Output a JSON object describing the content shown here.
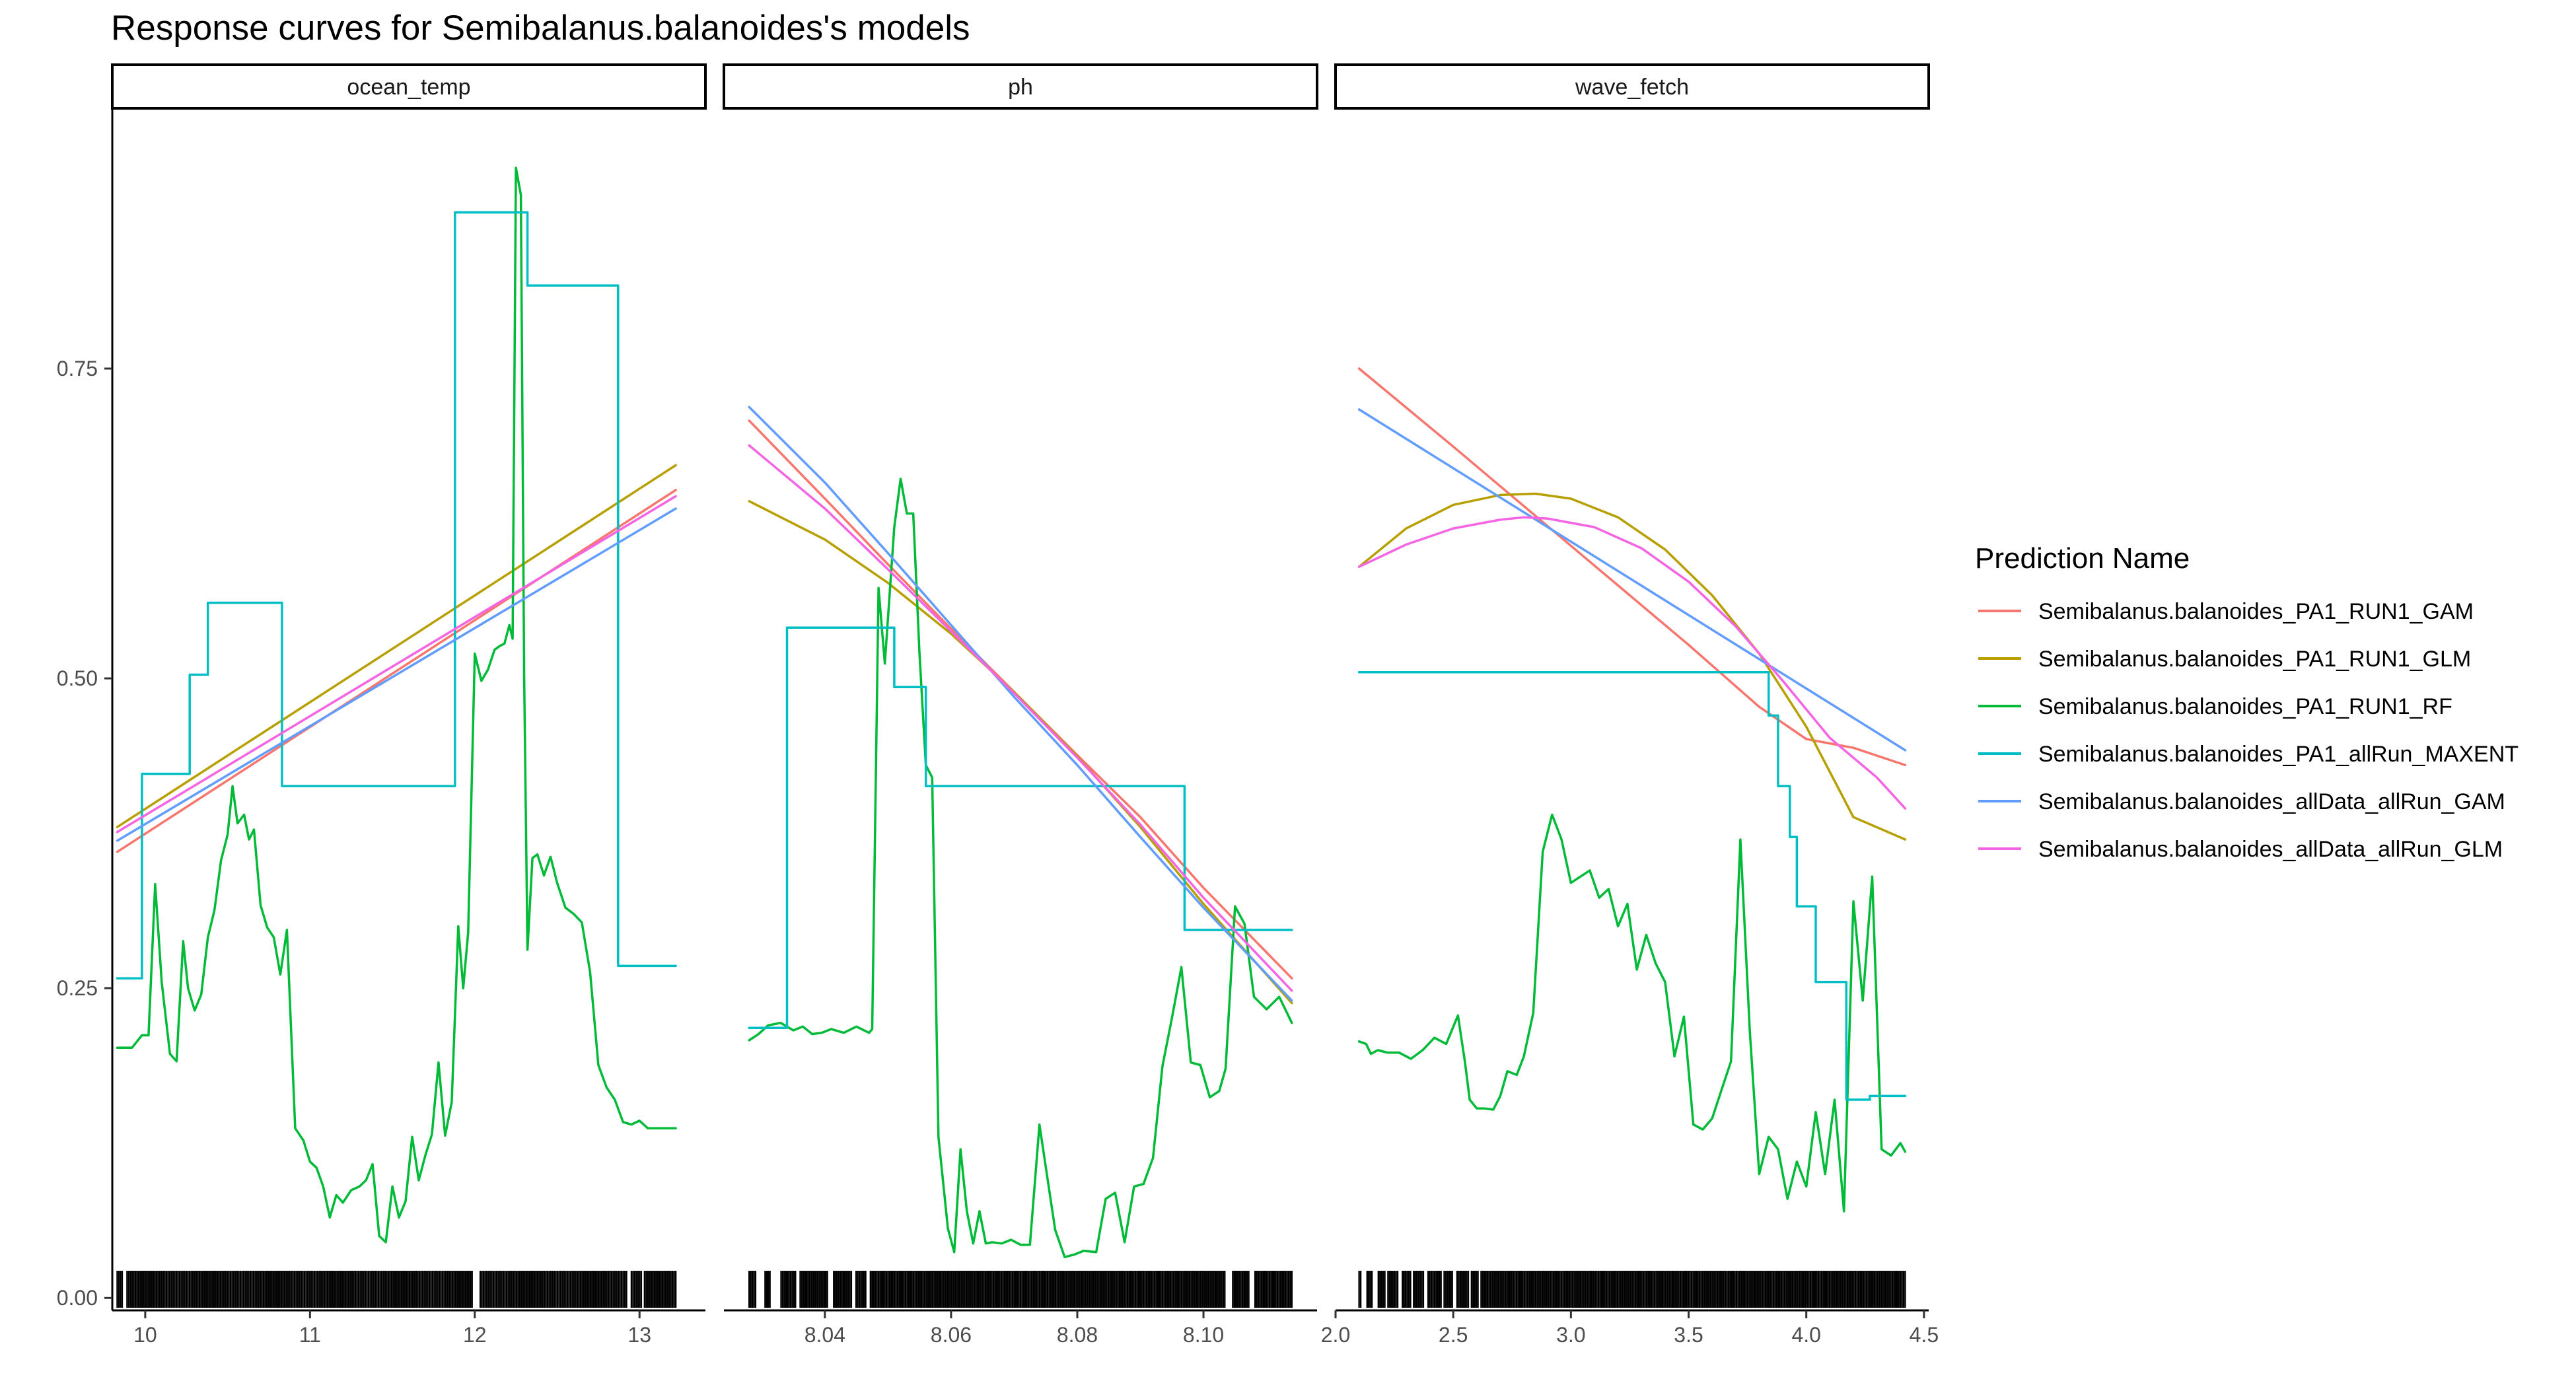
{
  "chart_data": {
    "type": "line",
    "title": "Response curves for Semibalanus.balanoides's models",
    "xlabel": "",
    "ylabel": "",
    "ylim": [
      -0.01,
      0.96
    ],
    "yticks": [
      "0.00",
      "0.25",
      "0.50",
      "0.75"
    ],
    "ytick_values": [
      0,
      0.25,
      0.5,
      0.75
    ],
    "grid": false,
    "legend_position": "right",
    "legend": {
      "title": "Prediction Name",
      "entries": [
        {
          "name": "Semibalanus.balanoides_PA1_RUN1_GAM",
          "color": "#F8766D"
        },
        {
          "name": "Semibalanus.balanoides_PA1_RUN1_GLM",
          "color": "#B79F00"
        },
        {
          "name": "Semibalanus.balanoides_PA1_RUN1_RF",
          "color": "#00BA38"
        },
        {
          "name": "Semibalanus.balanoides_PA1_allRun_MAXENT",
          "color": "#00BFC4"
        },
        {
          "name": "Semibalanus.balanoides_allData_allRun_GAM",
          "color": "#619CFF"
        },
        {
          "name": "Semibalanus.balanoides_allData_allRun_GLM",
          "color": "#F564E3"
        }
      ]
    },
    "panels": [
      {
        "strip": "ocean_temp",
        "xlim": [
          9.8,
          13.4
        ],
        "xticks": [
          "10",
          "11",
          "12",
          "13"
        ],
        "xtick_values": [
          10,
          11,
          12,
          13
        ],
        "series": [
          {
            "name": "Semibalanus.balanoides_PA1_RUN1_GAM",
            "x": [
              9.83,
              13.22
            ],
            "y": [
              0.36,
              0.652
            ]
          },
          {
            "name": "Semibalanus.balanoides_PA1_RUN1_GLM",
            "x": [
              9.83,
              13.22
            ],
            "y": [
              0.38,
              0.672
            ]
          },
          {
            "name": "Semibalanus.balanoides_PA1_RUN1_RF",
            "x": [
              9.83,
              9.92,
              9.98,
              10.02,
              10.06,
              10.1,
              10.15,
              10.19,
              10.23,
              10.26,
              10.3,
              10.34,
              10.38,
              10.42,
              10.46,
              10.5,
              10.53,
              10.56,
              10.6,
              10.63,
              10.66,
              10.7,
              10.74,
              10.78,
              10.82,
              10.86,
              10.91,
              10.96,
              11.0,
              11.04,
              11.08,
              11.12,
              11.16,
              11.2,
              11.25,
              11.3,
              11.34,
              11.38,
              11.42,
              11.46,
              11.5,
              11.54,
              11.58,
              11.62,
              11.66,
              11.7,
              11.74,
              11.78,
              11.82,
              11.86,
              11.9,
              11.93,
              11.96,
              12.0,
              12.04,
              12.08,
              12.12,
              12.15,
              12.18,
              12.21,
              12.23,
              12.25,
              12.28,
              12.3,
              12.32,
              12.35,
              12.38,
              12.42,
              12.46,
              12.5,
              12.55,
              12.6,
              12.65,
              12.7,
              12.75,
              12.8,
              12.85,
              12.9,
              12.95,
              13.0,
              13.05,
              13.1,
              13.22
            ],
            "y": [
              0.202,
              0.202,
              0.212,
              0.212,
              0.334,
              0.255,
              0.197,
              0.191,
              0.288,
              0.25,
              0.232,
              0.245,
              0.291,
              0.313,
              0.353,
              0.374,
              0.413,
              0.383,
              0.39,
              0.37,
              0.378,
              0.317,
              0.299,
              0.291,
              0.261,
              0.297,
              0.137,
              0.127,
              0.11,
              0.105,
              0.09,
              0.065,
              0.083,
              0.077,
              0.087,
              0.09,
              0.095,
              0.108,
              0.05,
              0.045,
              0.09,
              0.065,
              0.078,
              0.13,
              0.095,
              0.115,
              0.132,
              0.19,
              0.131,
              0.158,
              0.3,
              0.25,
              0.295,
              0.52,
              0.498,
              0.507,
              0.523,
              0.526,
              0.528,
              0.543,
              0.532,
              0.912,
              0.89,
              0.5,
              0.281,
              0.355,
              0.358,
              0.341,
              0.356,
              0.335,
              0.315,
              0.31,
              0.303,
              0.263,
              0.188,
              0.17,
              0.16,
              0.142,
              0.14,
              0.143,
              0.137,
              0.137,
              0.137
            ]
          },
          {
            "name": "Semibalanus.balanoides_PA1_allRun_MAXENT",
            "x": [
              9.83,
              9.98,
              9.98,
              10.27,
              10.27,
              10.38,
              10.38,
              10.83,
              10.83,
              11.88,
              11.88,
              12.32,
              12.32,
              12.87,
              12.87,
              13.22
            ],
            "y": [
              0.258,
              0.258,
              0.423,
              0.423,
              0.503,
              0.503,
              0.561,
              0.561,
              0.413,
              0.413,
              0.876,
              0.876,
              0.817,
              0.817,
              0.268,
              0.268
            ]
          },
          {
            "name": "Semibalanus.balanoides_allData_allRun_GAM",
            "x": [
              9.83,
              13.22
            ],
            "y": [
              0.369,
              0.637
            ]
          },
          {
            "name": "Semibalanus.balanoides_allData_allRun_GLM",
            "x": [
              9.83,
              13.22
            ],
            "y": [
              0.376,
              0.647
            ]
          }
        ],
        "rug_gaps": [
          [
            9.86,
            9.88
          ],
          [
            11.99,
            12.03
          ],
          [
            12.93,
            12.95
          ],
          [
            13.02,
            13.03
          ]
        ]
      },
      {
        "strip": "ph",
        "xlim": [
          8.024,
          8.118
        ],
        "xticks": [
          "8.04",
          "8.06",
          "8.08",
          "8.10"
        ],
        "xtick_values": [
          8.04,
          8.06,
          8.08,
          8.1
        ],
        "series": [
          {
            "name": "Semibalanus.balanoides_PA1_RUN1_GAM",
            "x": [
              8.028,
              8.04,
              8.05,
              8.06,
              8.07,
              8.08,
              8.09,
              8.1,
              8.114
            ],
            "y": [
              0.708,
              0.645,
              0.592,
              0.54,
              0.489,
              0.438,
              0.388,
              0.331,
              0.258
            ]
          },
          {
            "name": "Semibalanus.balanoides_PA1_RUN1_GLM",
            "x": [
              8.028,
              8.04,
              8.05,
              8.06,
              8.07,
              8.08,
              8.09,
              8.1,
              8.114
            ],
            "y": [
              0.643,
              0.612,
              0.577,
              0.536,
              0.489,
              0.437,
              0.38,
              0.318,
              0.238
            ]
          },
          {
            "name": "Semibalanus.balanoides_PA1_RUN1_RF",
            "x": [
              8.028,
              8.0295,
              8.031,
              8.033,
              8.035,
              8.0365,
              8.038,
              8.0395,
              8.041,
              8.043,
              8.045,
              8.047,
              8.0475,
              8.0485,
              8.0495,
              8.051,
              8.052,
              8.053,
              8.054,
              8.055,
              8.056,
              8.057,
              8.058,
              8.0595,
              8.0605,
              8.0615,
              8.0625,
              8.0635,
              8.0645,
              8.0655,
              8.0665,
              8.068,
              8.0695,
              8.071,
              8.0725,
              8.074,
              8.075,
              8.0765,
              8.078,
              8.0795,
              8.081,
              8.083,
              8.0845,
              8.086,
              8.0875,
              8.089,
              8.0905,
              8.092,
              8.0935,
              8.095,
              8.0965,
              8.098,
              8.0995,
              8.101,
              8.1025,
              8.1035,
              8.105,
              8.1065,
              8.108,
              8.11,
              8.112,
              8.114
            ],
            "y": [
              0.208,
              0.213,
              0.22,
              0.222,
              0.216,
              0.219,
              0.213,
              0.214,
              0.217,
              0.214,
              0.219,
              0.214,
              0.217,
              0.573,
              0.512,
              0.622,
              0.661,
              0.633,
              0.633,
              0.52,
              0.43,
              0.42,
              0.13,
              0.056,
              0.037,
              0.12,
              0.07,
              0.044,
              0.07,
              0.044,
              0.045,
              0.044,
              0.047,
              0.043,
              0.043,
              0.14,
              0.106,
              0.055,
              0.033,
              0.035,
              0.038,
              0.037,
              0.08,
              0.085,
              0.045,
              0.09,
              0.092,
              0.113,
              0.187,
              0.226,
              0.267,
              0.19,
              0.188,
              0.162,
              0.167,
              0.185,
              0.316,
              0.302,
              0.243,
              0.233,
              0.243,
              0.222
            ]
          },
          {
            "name": "Semibalanus.balanoides_PA1_allRun_MAXENT",
            "x": [
              8.028,
              8.034,
              8.034,
              8.051,
              8.051,
              8.056,
              8.056,
              8.097,
              8.097,
              8.114
            ],
            "y": [
              0.218,
              0.218,
              0.541,
              0.541,
              0.493,
              0.493,
              0.413,
              0.413,
              0.297,
              0.297
            ]
          },
          {
            "name": "Semibalanus.balanoides_allData_allRun_GAM",
            "x": [
              8.028,
              8.04,
              8.05,
              8.06,
              8.07,
              8.08,
              8.09,
              8.1,
              8.114
            ],
            "y": [
              0.719,
              0.658,
              0.601,
              0.543,
              0.485,
              0.43,
              0.372,
              0.315,
              0.24
            ]
          },
          {
            "name": "Semibalanus.balanoides_allData_allRun_GLM",
            "x": [
              8.028,
              8.04,
              8.05,
              8.06,
              8.07,
              8.08,
              8.09,
              8.1,
              8.114
            ],
            "y": [
              0.688,
              0.637,
              0.588,
              0.538,
              0.488,
              0.436,
              0.382,
              0.323,
              0.248
            ]
          }
        ],
        "rug_gaps": [
          [
            8.0292,
            8.0305
          ],
          [
            8.0315,
            8.033
          ],
          [
            8.0355,
            8.036
          ],
          [
            8.0405,
            8.0412
          ],
          [
            8.0442,
            8.0448
          ],
          [
            8.0465,
            8.0472
          ],
          [
            8.1035,
            8.1045
          ],
          [
            8.1072,
            8.108
          ]
        ]
      },
      {
        "strip": "wave_fetch",
        "xlim": [
          2.0,
          4.52
        ],
        "xticks": [
          "2.0",
          "2.5",
          "3.0",
          "3.5",
          "4.0",
          "4.5"
        ],
        "xtick_values": [
          2.0,
          2.5,
          3.0,
          3.5,
          4.0,
          4.5
        ],
        "series": [
          {
            "name": "Semibalanus.balanoides_PA1_RUN1_GAM",
            "x": [
              2.1,
              2.5,
              3.0,
              3.5,
              3.8,
              4.0,
              4.2,
              4.42
            ],
            "y": [
              0.75,
              0.687,
              0.607,
              0.527,
              0.477,
              0.451,
              0.444,
              0.43
            ]
          },
          {
            "name": "Semibalanus.balanoides_PA1_RUN1_GLM",
            "x": [
              2.1,
              2.3,
              2.5,
              2.7,
              2.85,
              3.0,
              3.2,
              3.4,
              3.6,
              3.8,
              4.0,
              4.2,
              4.42
            ],
            "y": [
              0.59,
              0.621,
              0.64,
              0.648,
              0.649,
              0.645,
              0.63,
              0.604,
              0.567,
              0.52,
              0.461,
              0.388,
              0.37
            ]
          },
          {
            "name": "Semibalanus.balanoides_PA1_RUN1_RF",
            "x": [
              2.1,
              2.13,
              2.15,
              2.18,
              2.22,
              2.27,
              2.32,
              2.37,
              2.42,
              2.47,
              2.52,
              2.55,
              2.57,
              2.6,
              2.63,
              2.67,
              2.7,
              2.73,
              2.77,
              2.8,
              2.84,
              2.88,
              2.92,
              2.96,
              3.0,
              3.04,
              3.08,
              3.12,
              3.16,
              3.2,
              3.24,
              3.28,
              3.32,
              3.36,
              3.4,
              3.44,
              3.48,
              3.52,
              3.56,
              3.6,
              3.64,
              3.68,
              3.72,
              3.76,
              3.8,
              3.84,
              3.88,
              3.92,
              3.96,
              4.0,
              4.04,
              4.08,
              4.12,
              4.16,
              4.2,
              4.24,
              4.28,
              4.32,
              4.36,
              4.4,
              4.42
            ],
            "y": [
              0.207,
              0.205,
              0.197,
              0.2,
              0.198,
              0.198,
              0.193,
              0.2,
              0.21,
              0.205,
              0.228,
              0.19,
              0.16,
              0.153,
              0.153,
              0.152,
              0.163,
              0.183,
              0.18,
              0.195,
              0.23,
              0.36,
              0.39,
              0.37,
              0.335,
              0.34,
              0.345,
              0.323,
              0.33,
              0.3,
              0.318,
              0.265,
              0.293,
              0.27,
              0.255,
              0.195,
              0.227,
              0.14,
              0.136,
              0.145,
              0.168,
              0.191,
              0.37,
              0.215,
              0.1,
              0.13,
              0.12,
              0.08,
              0.11,
              0.09,
              0.15,
              0.1,
              0.16,
              0.07,
              0.32,
              0.24,
              0.34,
              0.12,
              0.115,
              0.125,
              0.118
            ]
          },
          {
            "name": "Semibalanus.balanoides_PA1_allRun_MAXENT",
            "x": [
              2.1,
              3.84,
              3.84,
              3.88,
              3.88,
              3.93,
              3.93,
              3.96,
              3.96,
              4.04,
              4.04,
              4.17,
              4.17,
              4.27,
              4.27,
              4.42
            ],
            "y": [
              0.505,
              0.505,
              0.47,
              0.47,
              0.413,
              0.413,
              0.372,
              0.372,
              0.316,
              0.316,
              0.255,
              0.255,
              0.16,
              0.16,
              0.163,
              0.163
            ]
          },
          {
            "name": "Semibalanus.balanoides_allData_allRun_GAM",
            "x": [
              2.1,
              4.42
            ],
            "y": [
              0.717,
              0.442
            ]
          },
          {
            "name": "Semibalanus.balanoides_allData_allRun_GLM",
            "x": [
              2.1,
              2.3,
              2.5,
              2.7,
              2.8,
              2.9,
              3.1,
              3.3,
              3.5,
              3.7,
              3.9,
              4.1,
              4.3,
              4.42
            ],
            "y": [
              0.59,
              0.608,
              0.621,
              0.628,
              0.63,
              0.629,
              0.622,
              0.605,
              0.578,
              0.542,
              0.498,
              0.452,
              0.42,
              0.395
            ]
          }
        ],
        "rug_gaps": [
          [
            2.11,
            2.13
          ],
          [
            2.16,
            2.18
          ],
          [
            2.21,
            2.22
          ],
          [
            2.265,
            2.28
          ],
          [
            2.32,
            2.33
          ],
          [
            2.375,
            2.39
          ],
          [
            2.45,
            2.46
          ],
          [
            2.5,
            2.51
          ],
          [
            2.565,
            2.575
          ],
          [
            2.605,
            2.615
          ]
        ]
      }
    ]
  }
}
